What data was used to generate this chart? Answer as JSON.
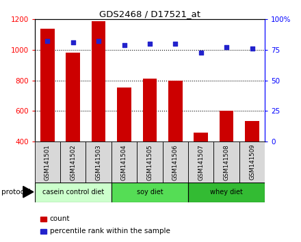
{
  "title": "GDS2468 / D17521_at",
  "samples": [
    "GSM141501",
    "GSM141502",
    "GSM141503",
    "GSM141504",
    "GSM141505",
    "GSM141506",
    "GSM141507",
    "GSM141508",
    "GSM141509"
  ],
  "counts": [
    1140,
    980,
    1190,
    755,
    810,
    800,
    460,
    600,
    535
  ],
  "percentile_ranks": [
    82,
    81,
    82,
    79,
    80,
    80,
    73,
    77,
    76
  ],
  "ylim_left": [
    400,
    1200
  ],
  "ylim_right": [
    0,
    100
  ],
  "yticks_left": [
    400,
    600,
    800,
    1000,
    1200
  ],
  "yticks_right": [
    0,
    25,
    50,
    75,
    100
  ],
  "bar_color": "#cc0000",
  "dot_color": "#2222cc",
  "groups": [
    {
      "label": "casein control diet",
      "start": 0,
      "end": 3,
      "color": "#ccffcc"
    },
    {
      "label": "soy diet",
      "start": 3,
      "end": 6,
      "color": "#55dd55"
    },
    {
      "label": "whey diet",
      "start": 6,
      "end": 9,
      "color": "#33bb33"
    }
  ],
  "protocol_label": "protocol",
  "legend_count_label": "count",
  "legend_pct_label": "percentile rank within the sample",
  "tick_bg_color": "#d8d8d8",
  "grid_yticks": [
    600,
    800,
    1000
  ]
}
